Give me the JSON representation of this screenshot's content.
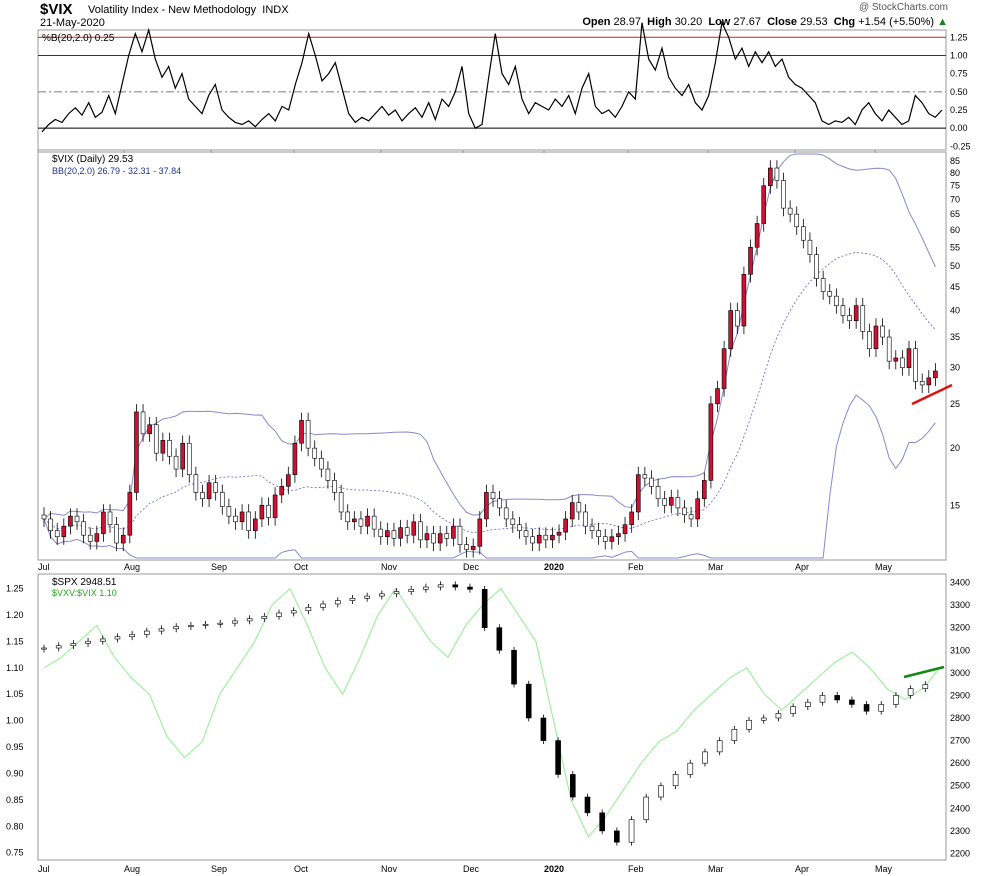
{
  "header": {
    "symbol": "$VIX",
    "name": "Volatility Index - New Methodology",
    "exchange": "INDX",
    "date": "21-May-2020",
    "credit": "@ StockCharts.com",
    "quote": {
      "open_label": "Open",
      "open": "28.97",
      "high_label": "High",
      "high": "30.20",
      "low_label": "Low",
      "low": "27.67",
      "close_label": "Close",
      "close": "29.53",
      "chg_label": "Chg",
      "chg": "+1.54 (+5.50%)",
      "chg_arrow": "▲"
    }
  },
  "colors": {
    "up": "#000000",
    "down": "#cc1133",
    "band": "#8888cc",
    "mid_band": "#6666cc",
    "ratio": "#99ee99",
    "support_line": "#dd1111",
    "trend_line": "#118811",
    "hline_upper": "#cc2222",
    "hline_mid": "#223388"
  },
  "chart_data": [
    {
      "type": "line",
      "panel": "indicator",
      "legend": "%B(20,2.0) 0.25",
      "yticks": [
        "1.25",
        "1.00",
        "0.75",
        "0.50",
        "0.25",
        "0.00",
        "-0.25"
      ],
      "ylim": [
        -0.3,
        1.35
      ],
      "reference_lines": [
        1.25,
        1.0,
        0.5,
        0.0
      ],
      "x_start": "2020-07-01",
      "x_end": "2020-05-21",
      "series_points": [
        [
          "Jul",
          -0.05
        ],
        [
          "Jul",
          0.05
        ],
        [
          "Jul",
          0.12
        ],
        [
          "Jul",
          0.08
        ],
        [
          "Jul",
          0.2
        ],
        [
          "Jul",
          0.28
        ],
        [
          "Jul",
          0.18
        ],
        [
          "Jul",
          0.35
        ],
        [
          "Jul",
          0.15
        ],
        [
          "Jul",
          0.22
        ],
        [
          "Jul",
          0.45
        ],
        [
          "Jul",
          0.2
        ],
        [
          "Jul",
          0.6
        ],
        [
          "Jul",
          1.0
        ],
        [
          "Aug",
          1.3
        ],
        [
          "Aug",
          1.05
        ],
        [
          "Aug",
          1.35
        ],
        [
          "Aug",
          0.95
        ],
        [
          "Aug",
          0.7
        ],
        [
          "Aug",
          0.85
        ],
        [
          "Aug",
          0.55
        ],
        [
          "Aug",
          0.75
        ],
        [
          "Aug",
          0.4
        ],
        [
          "Aug",
          0.3
        ],
        [
          "Aug",
          0.2
        ],
        [
          "Aug",
          0.45
        ],
        [
          "Aug",
          0.6
        ],
        [
          "Aug",
          0.25
        ],
        [
          "Aug",
          0.15
        ],
        [
          "Sep",
          0.08
        ],
        [
          "Sep",
          0.05
        ],
        [
          "Sep",
          0.1
        ],
        [
          "Sep",
          0.02
        ],
        [
          "Sep",
          0.12
        ],
        [
          "Sep",
          0.2
        ],
        [
          "Sep",
          0.1
        ],
        [
          "Sep",
          0.3
        ],
        [
          "Sep",
          0.25
        ],
        [
          "Sep",
          0.6
        ],
        [
          "Sep",
          0.9
        ],
        [
          "Oct",
          1.3
        ],
        [
          "Oct",
          1.0
        ],
        [
          "Oct",
          0.65
        ],
        [
          "Oct",
          0.75
        ],
        [
          "Oct",
          0.9
        ],
        [
          "Oct",
          0.55
        ],
        [
          "Oct",
          0.2
        ],
        [
          "Oct",
          0.08
        ],
        [
          "Oct",
          0.15
        ],
        [
          "Oct",
          0.1
        ],
        [
          "Oct",
          0.2
        ],
        [
          "Oct",
          0.3
        ],
        [
          "Oct",
          0.18
        ],
        [
          "Oct",
          0.25
        ],
        [
          "Nov",
          0.1
        ],
        [
          "Nov",
          0.2
        ],
        [
          "Nov",
          0.28
        ],
        [
          "Nov",
          0.15
        ],
        [
          "Nov",
          0.35
        ],
        [
          "Nov",
          0.12
        ],
        [
          "Nov",
          0.4
        ],
        [
          "Nov",
          0.3
        ],
        [
          "Nov",
          0.5
        ],
        [
          "Nov",
          0.85
        ],
        [
          "Nov",
          0.2
        ],
        [
          "Nov",
          0.0
        ],
        [
          "Nov",
          0.05
        ],
        [
          "Dec",
          0.7
        ],
        [
          "Dec",
          1.3
        ],
        [
          "Dec",
          0.75
        ],
        [
          "Dec",
          0.6
        ],
        [
          "Dec",
          0.85
        ],
        [
          "Dec",
          0.4
        ],
        [
          "Dec",
          0.2
        ],
        [
          "Dec",
          0.35
        ],
        [
          "Dec",
          0.3
        ],
        [
          "Dec",
          0.25
        ],
        [
          "Dec",
          0.4
        ],
        [
          "2020",
          0.3
        ],
        [
          "2020",
          0.45
        ],
        [
          "2020",
          0.2
        ],
        [
          "2020",
          0.55
        ],
        [
          "2020",
          0.75
        ],
        [
          "2020",
          0.3
        ],
        [
          "2020",
          0.2
        ],
        [
          "2020",
          0.25
        ],
        [
          "2020",
          0.15
        ],
        [
          "2020",
          0.3
        ],
        [
          "2020",
          0.5
        ],
        [
          "2020",
          0.4
        ],
        [
          "Feb",
          1.45
        ],
        [
          "Feb",
          0.95
        ],
        [
          "Feb",
          0.8
        ],
        [
          "Feb",
          1.1
        ],
        [
          "Feb",
          0.7
        ],
        [
          "Feb",
          0.55
        ],
        [
          "Feb",
          0.45
        ],
        [
          "Feb",
          0.6
        ],
        [
          "Feb",
          0.35
        ],
        [
          "Feb",
          0.25
        ],
        [
          "Feb",
          0.45
        ],
        [
          "Feb",
          0.9
        ],
        [
          "Mar",
          1.45
        ],
        [
          "Mar",
          1.25
        ],
        [
          "Mar",
          0.95
        ],
        [
          "Mar",
          1.1
        ],
        [
          "Mar",
          0.85
        ],
        [
          "Mar",
          1.05
        ],
        [
          "Mar",
          0.9
        ],
        [
          "Mar",
          1.05
        ],
        [
          "Mar",
          0.85
        ],
        [
          "Mar",
          0.95
        ],
        [
          "Mar",
          0.7
        ],
        [
          "Mar",
          0.6
        ],
        [
          "Apr",
          0.55
        ],
        [
          "Apr",
          0.45
        ],
        [
          "Apr",
          0.35
        ],
        [
          "Apr",
          0.1
        ],
        [
          "Apr",
          0.05
        ],
        [
          "Apr",
          0.1
        ],
        [
          "Apr",
          0.08
        ],
        [
          "Apr",
          0.15
        ],
        [
          "Apr",
          0.05
        ],
        [
          "Apr",
          0.25
        ],
        [
          "Apr",
          0.35
        ],
        [
          "Apr",
          0.2
        ],
        [
          "Apr",
          0.1
        ],
        [
          "May",
          0.25
        ],
        [
          "May",
          0.15
        ],
        [
          "May",
          0.05
        ],
        [
          "May",
          0.1
        ],
        [
          "May",
          0.45
        ],
        [
          "May",
          0.35
        ],
        [
          "May",
          0.2
        ],
        [
          "May",
          0.15
        ],
        [
          "May",
          0.25
        ]
      ]
    },
    {
      "type": "candlestick",
      "panel": "price",
      "legend": "$VIX (Daily) 29.53",
      "legend2": "BB(20,2.0) 26.79 - 32.31 - 37.84",
      "yticks": [
        "85",
        "80",
        "75",
        "70",
        "65",
        "60",
        "55",
        "50",
        "45",
        "40",
        "35",
        "30",
        "25",
        "20",
        "15"
      ],
      "scale": "log",
      "ylim": [
        11.5,
        88
      ],
      "last": {
        "open": 28.97,
        "high": 30.2,
        "low": 27.67,
        "close": 29.53
      },
      "bollinger": {
        "lower": 26.79,
        "middle": 32.31,
        "upper": 37.84
      },
      "closes": [
        14,
        13.2,
        12.8,
        13.5,
        14.2,
        13.8,
        12.9,
        12.5,
        13.0,
        14.5,
        13.6,
        12.4,
        12.9,
        16.0,
        24.0,
        21.5,
        22.5,
        19.5,
        20.8,
        19.2,
        18.0,
        20.5,
        17.5,
        16.0,
        15.5,
        16.8,
        16.0,
        14.9,
        14.2,
        13.8,
        14.5,
        13.2,
        14.0,
        15.0,
        14.1,
        15.8,
        16.5,
        17.5,
        20.5,
        23.0,
        20.0,
        19.0,
        18.0,
        17.0,
        16.0,
        14.5,
        13.8,
        14.0,
        13.5,
        14.2,
        13.3,
        12.8,
        13.2,
        12.7,
        13.4,
        12.9,
        13.8,
        12.6,
        13.0,
        12.4,
        13.0,
        12.7,
        13.5,
        12.3,
        12.0,
        12.2,
        14.0,
        16.0,
        15.5,
        14.8,
        14.0,
        13.6,
        13.2,
        12.8,
        12.4,
        12.9,
        12.6,
        12.9,
        13.1,
        14.0,
        15.2,
        14.5,
        13.5,
        13.2,
        12.8,
        12.5,
        12.8,
        13.0,
        13.6,
        14.5,
        17.5,
        17.2,
        16.5,
        15.5,
        15.0,
        15.6,
        14.8,
        14.3,
        14.0,
        15.5,
        17.0,
        25.0,
        27.0,
        33.0,
        40.0,
        37.0,
        48.0,
        55.0,
        62.0,
        75.0,
        82.0,
        77.0,
        67.0,
        65.0,
        61.0,
        57.0,
        53.0,
        47.0,
        44.0,
        43.0,
        41.0,
        39.0,
        38.0,
        41.0,
        36.0,
        33.0,
        37.0,
        35.0,
        31.0,
        31.5,
        30.0,
        33.0,
        28.0,
        27.5,
        28.5,
        29.5
      ]
    },
    {
      "type": "line",
      "panel": "spx",
      "legend": "$SPX 2948.51",
      "legend2": "$VXV:$VIX 1.10",
      "left_yticks": [
        "1.25",
        "1.20",
        "1.15",
        "1.10",
        "1.05",
        "1.00",
        "0.95",
        "0.90",
        "0.85",
        "0.80",
        "0.75"
      ],
      "right_yticks": [
        "3400",
        "3300",
        "3200",
        "3100",
        "3000",
        "2900",
        "2800",
        "2700",
        "2600",
        "2500",
        "2400",
        "2300",
        "2200"
      ],
      "spx_last": 2948.51,
      "ratio_last": 1.1,
      "spx_closes": [
        3110,
        3120,
        3130,
        3140,
        3150,
        3160,
        3170,
        3185,
        3195,
        3205,
        3210,
        3215,
        3220,
        3230,
        3240,
        3250,
        3265,
        3275,
        3290,
        3305,
        3320,
        3330,
        3340,
        3350,
        3360,
        3370,
        3380,
        3390,
        3380,
        3370,
        3200,
        3100,
        2950,
        2800,
        2700,
        2550,
        2450,
        2380,
        2300,
        2250,
        2350,
        2450,
        2500,
        2550,
        2600,
        2650,
        2700,
        2750,
        2790,
        2800,
        2820,
        2850,
        2870,
        2900,
        2880,
        2860,
        2830,
        2860,
        2900,
        2930,
        2948
      ],
      "ratio_values": [
        1.1,
        1.12,
        1.15,
        1.18,
        1.12,
        1.08,
        1.05,
        0.97,
        0.93,
        0.96,
        1.05,
        1.1,
        1.15,
        1.22,
        1.25,
        1.18,
        1.1,
        1.05,
        1.12,
        1.2,
        1.25,
        1.2,
        1.15,
        1.12,
        1.18,
        1.22,
        1.25,
        1.2,
        1.15,
        1.0,
        0.85,
        0.78,
        0.82,
        0.87,
        0.92,
        0.96,
        0.98,
        1.02,
        1.05,
        1.08,
        1.1,
        1.05,
        1.02,
        1.05,
        1.08,
        1.11,
        1.13,
        1.1,
        1.06,
        1.04,
        1.06,
        1.1
      ]
    }
  ],
  "xaxis": {
    "labels": [
      "Jul",
      "Aug",
      "Sep",
      "Oct",
      "Nov",
      "Dec",
      "2020",
      "Feb",
      "Mar",
      "Apr",
      "May"
    ]
  }
}
